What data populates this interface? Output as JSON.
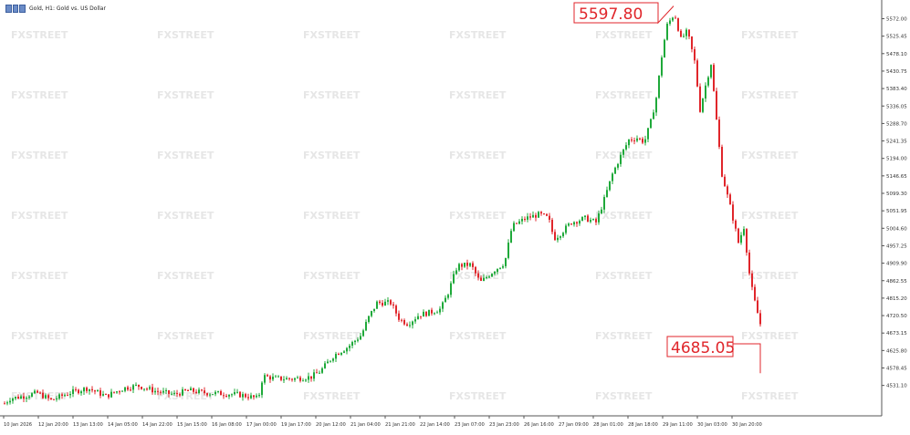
{
  "header": {
    "title": "Gold, H1:  Gold vs. US Dollar",
    "icon": "symbol-icon"
  },
  "watermark": {
    "text": "FXSTREET",
    "color": "#e6e6e6"
  },
  "colors": {
    "up": "#1fa93a",
    "down": "#e0262b",
    "axis": "#555555",
    "annotation": "#e0262b",
    "background": "#ffffff"
  },
  "chart_data": {
    "type": "candlestick",
    "title": "Gold, H1:  Gold vs. US Dollar",
    "ylim": [
      4579.0,
      5606.0
    ],
    "y_ticks": [
      "5572.00",
      "5525.45",
      "5478.10",
      "5430.75",
      "5383.40",
      "5336.05",
      "5288.70",
      "5241.35",
      "5194.00",
      "5146.65",
      "5099.30",
      "5051.95",
      "5004.60",
      "4957.25",
      "4909.90",
      "4862.55",
      "4815.20",
      "4720.50",
      "4673.15",
      "4625.80",
      "4578.45",
      "4531.10"
    ],
    "x_ticks": [
      "10 Jan 2026",
      "12 Jan 20:00",
      "13 Jan 13:00",
      "14 Jan 05:00",
      "14 Jan 22:00",
      "15 Jan 15:00",
      "16 Jan 08:00",
      "17 Jan 00:00",
      "19 Jan 17:00",
      "20 Jan 12:00",
      "21 Jan 04:00",
      "21 Jan 21:00",
      "22 Jan 14:00",
      "23 Jan 07:00",
      "23 Jan 23:00",
      "26 Jan 16:00",
      "27 Jan 09:00",
      "28 Jan 01:00",
      "28 Jan 18:00",
      "29 Jan 11:00",
      "30 Jan 03:00",
      "30 Jan 20:00"
    ],
    "annotations": [
      {
        "label": "5597.80",
        "price": 5597.8
      },
      {
        "label": "4685.05",
        "price": 4685.05
      }
    ],
    "path_keyframes": [
      [
        0,
        4585
      ],
      [
        4,
        4610
      ],
      [
        10,
        4622
      ],
      [
        25,
        4628
      ],
      [
        40,
        4636
      ],
      [
        55,
        4618
      ],
      [
        75,
        4636
      ],
      [
        95,
        4648
      ],
      [
        115,
        4628
      ],
      [
        135,
        4648
      ],
      [
        150,
        4654
      ],
      [
        170,
        4640
      ],
      [
        190,
        4632
      ],
      [
        205,
        4642
      ],
      [
        225,
        4636
      ],
      [
        245,
        4634
      ],
      [
        260,
        4632
      ],
      [
        270,
        4628
      ],
      [
        282,
        4622
      ],
      [
        287,
        4678
      ],
      [
        300,
        4672
      ],
      [
        320,
        4671
      ],
      [
        340,
        4676
      ],
      [
        350,
        4690
      ],
      [
        365,
        4730
      ],
      [
        380,
        4750
      ],
      [
        395,
        4780
      ],
      [
        402,
        4820
      ],
      [
        412,
        4860
      ],
      [
        427,
        4860
      ],
      [
        437,
        4818
      ],
      [
        446,
        4808
      ],
      [
        458,
        4830
      ],
      [
        470,
        4836
      ],
      [
        482,
        4845
      ],
      [
        490,
        4885
      ],
      [
        500,
        4952
      ],
      [
        515,
        4955
      ],
      [
        525,
        4910
      ],
      [
        540,
        4940
      ],
      [
        552,
        4960
      ],
      [
        560,
        5050
      ],
      [
        575,
        5070
      ],
      [
        590,
        5080
      ],
      [
        600,
        5070
      ],
      [
        606,
        5020
      ],
      [
        612,
        5030
      ],
      [
        625,
        5060
      ],
      [
        640,
        5070
      ],
      [
        652,
        5060
      ],
      [
        660,
        5110
      ],
      [
        670,
        5180
      ],
      [
        680,
        5230
      ],
      [
        688,
        5265
      ],
      [
        697,
        5270
      ],
      [
        705,
        5260
      ],
      [
        712,
        5310
      ],
      [
        718,
        5370
      ],
      [
        725,
        5490
      ],
      [
        730,
        5550
      ],
      [
        738,
        5580
      ],
      [
        745,
        5515
      ],
      [
        752,
        5535
      ],
      [
        760,
        5460
      ],
      [
        766,
        5340
      ],
      [
        772,
        5400
      ],
      [
        778,
        5455
      ],
      [
        785,
        5290
      ],
      [
        790,
        5180
      ],
      [
        800,
        5090
      ],
      [
        808,
        5010
      ],
      [
        815,
        5055
      ],
      [
        818,
        4960
      ],
      [
        824,
        4880
      ],
      [
        830,
        4825
      ],
      [
        834,
        4790
      ]
    ]
  }
}
